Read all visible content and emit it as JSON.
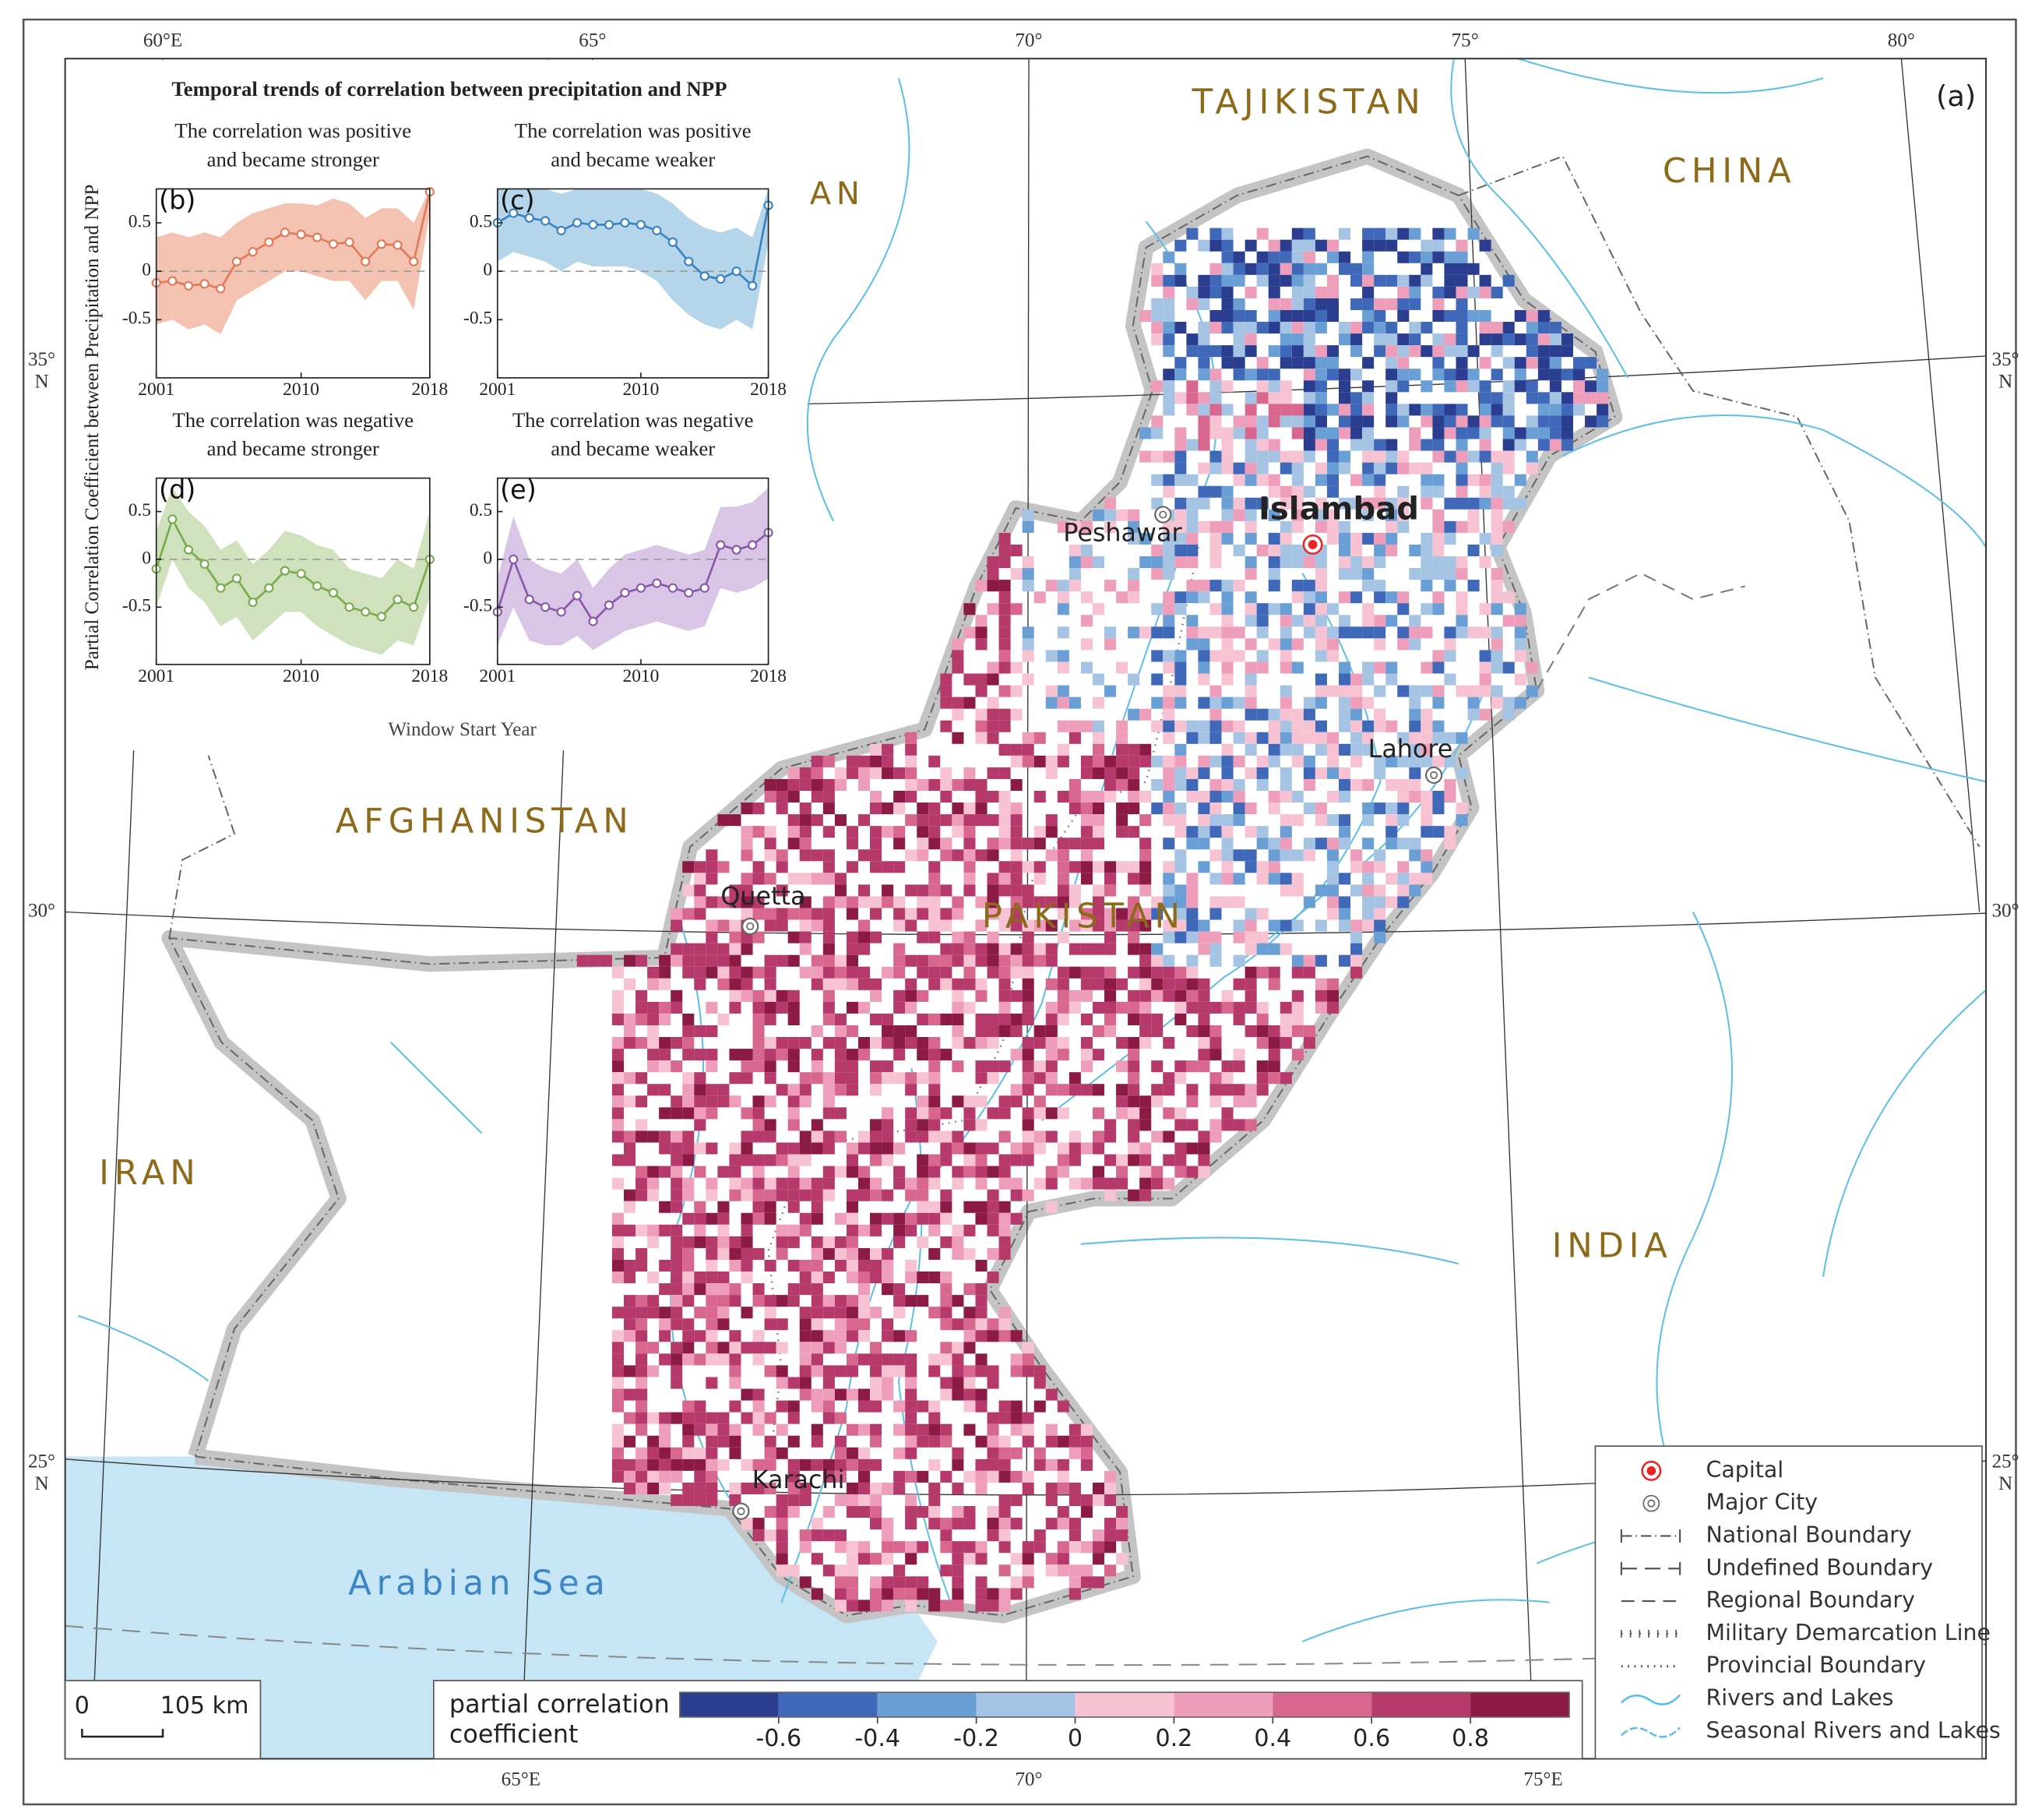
{
  "map": {
    "panel_label": "(a)",
    "countries": [
      "TAJIKISTAN",
      "CHINA",
      "AN",
      "AFGHANISTAN",
      "PAKISTAN",
      "IRAN",
      "INDIA"
    ],
    "sea": "Arabian Sea",
    "cities": [
      "Islambad",
      "Peshawar",
      "Lahore",
      "Quetta",
      "Karachi"
    ],
    "top_degrees": [
      "60°E",
      "65°",
      "70°",
      "75°",
      "80°"
    ],
    "bottom_degrees": [
      "65°E",
      "70°",
      "75°E"
    ],
    "left_degrees": [
      [
        "35°",
        "N"
      ],
      [
        "30°"
      ],
      [
        "25°",
        "N"
      ]
    ],
    "right_degrees": [
      [
        "35°",
        "N"
      ],
      [
        "30°"
      ],
      [
        "25°",
        "N"
      ]
    ],
    "scale_bar": [
      "0",
      "105 km"
    ],
    "legend": [
      "Capital",
      "Major City",
      "National Boundary",
      "Undefined Boundary",
      "Regional Boundary",
      "Military Demarcation Line",
      "Provincial Boundary",
      "Rivers and Lakes",
      "Seasonal Rivers and Lakes"
    ],
    "colorbar": {
      "label": [
        "partial correlation",
        "coefficient"
      ],
      "lim": [
        -0.8,
        1.0
      ],
      "ticks": [
        -0.6,
        -0.4,
        -0.2,
        0,
        0.2,
        0.4,
        0.6,
        0.8
      ],
      "colors": [
        "#2b3d8f",
        "#3f68b8",
        "#6a9fd6",
        "#a5c4e4",
        "#f7c3d3",
        "#ee9eba",
        "#d8678f",
        "#b53a6b",
        "#8b1a45"
      ]
    }
  },
  "inset": {
    "title": "Temporal trends of correlation between precipitation and NPP",
    "ylabel": "Partial Correlation Coefficient between Precipitation and NPP",
    "xlabel": "Window Start Year"
  },
  "chart_data": [
    {
      "type": "line",
      "label": "(b)",
      "title": [
        "The correlation was positive",
        "and became stronger"
      ],
      "x": [
        2001,
        2002,
        2003,
        2004,
        2005,
        2006,
        2007,
        2008,
        2009,
        2010,
        2011,
        2012,
        2013,
        2014,
        2015,
        2016,
        2017,
        2018
      ],
      "series": [
        {
          "color": "#e07b5a",
          "band_color": "#f4c2b0",
          "values": [
            -0.12,
            -0.1,
            -0.15,
            -0.13,
            -0.18,
            0.1,
            0.2,
            0.3,
            0.4,
            0.38,
            0.35,
            0.28,
            0.3,
            0.1,
            0.28,
            0.27,
            0.1,
            0.82
          ],
          "band_lower": [
            -0.55,
            -0.5,
            -0.6,
            -0.55,
            -0.65,
            -0.3,
            -0.2,
            -0.1,
            0,
            0,
            -0.05,
            -0.1,
            -0.1,
            -0.3,
            -0.1,
            -0.1,
            -0.4,
            0.6
          ],
          "band_upper": [
            0.35,
            0.4,
            0.35,
            0.4,
            0.35,
            0.5,
            0.6,
            0.65,
            0.7,
            0.7,
            0.68,
            0.75,
            0.7,
            0.55,
            0.65,
            0.65,
            0.5,
            0.85
          ]
        }
      ],
      "xlim": [
        2001,
        2018
      ],
      "xticks": [
        2001,
        2010,
        2018
      ],
      "ylim": [
        -1.1,
        0.85
      ],
      "yticks": [
        -0.5,
        0,
        0.5
      ],
      "zero_line": true
    },
    {
      "type": "line",
      "label": "(c)",
      "title": [
        "The correlation was positive",
        "and became weaker"
      ],
      "x": [
        2001,
        2002,
        2003,
        2004,
        2005,
        2006,
        2007,
        2008,
        2009,
        2010,
        2011,
        2012,
        2013,
        2014,
        2015,
        2016,
        2017,
        2018
      ],
      "series": [
        {
          "color": "#3a83c0",
          "band_color": "#b5d5ea",
          "values": [
            0.5,
            0.6,
            0.55,
            0.52,
            0.42,
            0.5,
            0.48,
            0.48,
            0.5,
            0.48,
            0.42,
            0.3,
            0.1,
            -0.05,
            -0.08,
            0,
            -0.15,
            0.68
          ],
          "band_lower": [
            0.1,
            0.2,
            0.15,
            0.1,
            0,
            0.1,
            0.05,
            0.05,
            0.05,
            0,
            -0.1,
            -0.3,
            -0.45,
            -0.55,
            -0.6,
            -0.5,
            -0.6,
            0.3
          ],
          "band_upper": [
            0.85,
            0.85,
            0.85,
            0.85,
            0.8,
            0.85,
            0.85,
            0.85,
            0.85,
            0.85,
            0.8,
            0.7,
            0.55,
            0.45,
            0.4,
            0.45,
            0.35,
            0.85
          ]
        }
      ],
      "xlim": [
        2001,
        2018
      ],
      "xticks": [
        2001,
        2010,
        2018
      ],
      "ylim": [
        -1.1,
        0.85
      ],
      "yticks": [
        -0.5,
        0,
        0.5
      ],
      "zero_line": true
    },
    {
      "type": "line",
      "label": "(d)",
      "title": [
        "The correlation was negative",
        "and became stronger"
      ],
      "x": [
        2001,
        2002,
        2003,
        2004,
        2005,
        2006,
        2007,
        2008,
        2009,
        2010,
        2011,
        2012,
        2013,
        2014,
        2015,
        2016,
        2017,
        2018
      ],
      "series": [
        {
          "color": "#7aab4e",
          "band_color": "#cfe2bd",
          "values": [
            -0.1,
            0.42,
            0.1,
            -0.05,
            -0.3,
            -0.2,
            -0.45,
            -0.3,
            -0.12,
            -0.15,
            -0.28,
            -0.35,
            -0.5,
            -0.55,
            -0.6,
            -0.42,
            -0.5,
            0
          ],
          "band_lower": [
            -0.5,
            0,
            -0.3,
            -0.45,
            -0.7,
            -0.6,
            -0.85,
            -0.7,
            -0.55,
            -0.55,
            -0.7,
            -0.8,
            -0.9,
            -0.95,
            -1.0,
            -0.85,
            -0.9,
            -0.4
          ],
          "band_upper": [
            0.3,
            0.75,
            0.5,
            0.35,
            0.1,
            0.2,
            -0.05,
            0.1,
            0.3,
            0.25,
            0.15,
            0.1,
            -0.1,
            -0.15,
            -0.2,
            0,
            -0.1,
            0.5
          ]
        }
      ],
      "xlim": [
        2001,
        2018
      ],
      "xticks": [
        2001,
        2010,
        2018
      ],
      "ylim": [
        -1.1,
        0.85
      ],
      "yticks": [
        -0.5,
        0,
        0.5
      ],
      "zero_line": true
    },
    {
      "type": "line",
      "label": "(e)",
      "title": [
        "The correlation was negative",
        "and became weaker"
      ],
      "x": [
        2001,
        2002,
        2003,
        2004,
        2005,
        2006,
        2007,
        2008,
        2009,
        2010,
        2011,
        2012,
        2013,
        2014,
        2015,
        2016,
        2017,
        2018
      ],
      "series": [
        {
          "color": "#8a5aa8",
          "band_color": "#d9c6e6",
          "values": [
            -0.55,
            0,
            -0.42,
            -0.5,
            -0.55,
            -0.38,
            -0.65,
            -0.48,
            -0.35,
            -0.3,
            -0.25,
            -0.3,
            -0.35,
            -0.3,
            0.15,
            0.1,
            0.15,
            0.28
          ],
          "band_lower": [
            -0.9,
            -0.5,
            -0.85,
            -0.9,
            -0.9,
            -0.8,
            -0.95,
            -0.85,
            -0.75,
            -0.7,
            -0.65,
            -0.7,
            -0.75,
            -0.7,
            -0.3,
            -0.35,
            -0.3,
            -0.2
          ],
          "band_upper": [
            -0.2,
            0.45,
            0,
            -0.1,
            -0.15,
            0,
            -0.3,
            -0.1,
            0.05,
            0.1,
            0.15,
            0.1,
            0.05,
            0.1,
            0.55,
            0.55,
            0.6,
            0.75
          ]
        }
      ],
      "xlim": [
        2001,
        2018
      ],
      "xticks": [
        2001,
        2010,
        2018
      ],
      "ylim": [
        -1.1,
        0.85
      ],
      "yticks": [
        -0.5,
        0,
        0.5
      ],
      "zero_line": true
    }
  ]
}
